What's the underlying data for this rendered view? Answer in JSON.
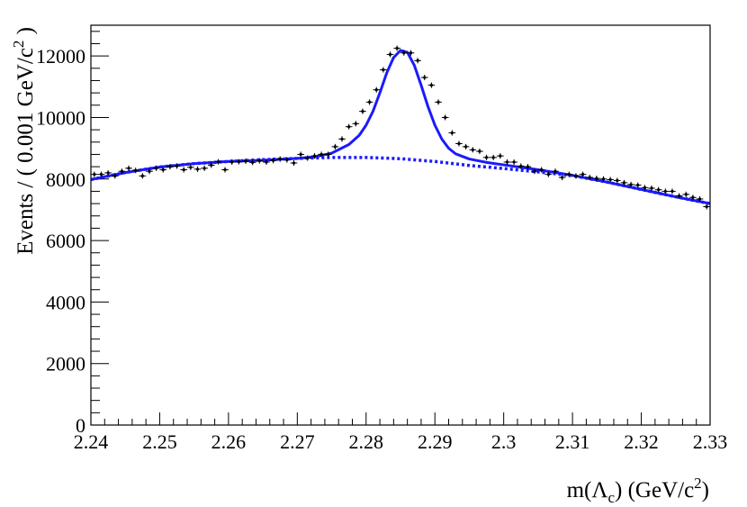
{
  "chart_data": {
    "type": "scatter",
    "xlabel": "m(Λc) (GeV/c²)",
    "xlabel_parts": {
      "prefix": "m(Λ",
      "sub": "c",
      "mid": ") (GeV/c",
      "sup": "2",
      "suffix": ")"
    },
    "ylabel": "Events / ( 0.001 GeV/c² )",
    "ylabel_parts": {
      "prefix": "Events / ( 0.001 GeV/c",
      "sup": "2",
      "suffix": " )"
    },
    "xlim": [
      2.24,
      2.33
    ],
    "ylim": [
      0,
      13000
    ],
    "x_ticks": [
      "2.24",
      "2.25",
      "2.26",
      "2.27",
      "2.28",
      "2.29",
      "2.3",
      "2.31",
      "2.32",
      "2.33"
    ],
    "x_tick_values": [
      2.24,
      2.25,
      2.26,
      2.27,
      2.28,
      2.29,
      2.3,
      2.31,
      2.32,
      2.33
    ],
    "y_ticks": [
      "0",
      "2000",
      "4000",
      "6000",
      "8000",
      "10000",
      "12000"
    ],
    "y_tick_values": [
      0,
      2000,
      4000,
      6000,
      8000,
      10000,
      12000
    ],
    "grid": false,
    "colors": {
      "fit": "#1a1aff",
      "points": "#000000"
    },
    "series": [
      {
        "kind": "points",
        "x": [
          2.2405,
          2.2415,
          2.2425,
          2.2435,
          2.2445,
          2.2455,
          2.2465,
          2.2475,
          2.2485,
          2.2495,
          2.2505,
          2.2515,
          2.2525,
          2.2535,
          2.2545,
          2.2555,
          2.2565,
          2.2575,
          2.2585,
          2.2595,
          2.2605,
          2.2615,
          2.2625,
          2.2635,
          2.2645,
          2.2655,
          2.2665,
          2.2675,
          2.2685,
          2.2695,
          2.2705,
          2.2715,
          2.2725,
          2.2735,
          2.2745,
          2.2755,
          2.2765,
          2.2775,
          2.2785,
          2.2795,
          2.2805,
          2.2815,
          2.2825,
          2.2835,
          2.2845,
          2.2855,
          2.2865,
          2.2875,
          2.2885,
          2.2895,
          2.2905,
          2.2915,
          2.2925,
          2.2935,
          2.2945,
          2.2955,
          2.2965,
          2.2975,
          2.2985,
          2.2995,
          2.3005,
          2.3015,
          2.3025,
          2.3035,
          2.3045,
          2.3055,
          2.3065,
          2.3075,
          2.3085,
          2.3095,
          2.3105,
          2.3115,
          2.3125,
          2.3135,
          2.3145,
          2.3155,
          2.3165,
          2.3175,
          2.3185,
          2.3195,
          2.3205,
          2.3215,
          2.3225,
          2.3235,
          2.3245,
          2.3255,
          2.3265,
          2.3275,
          2.3285,
          2.3295
        ],
        "y": [
          8150,
          8150,
          8200,
          8100,
          8250,
          8350,
          8280,
          8100,
          8250,
          8350,
          8300,
          8400,
          8420,
          8300,
          8380,
          8320,
          8350,
          8450,
          8560,
          8300,
          8550,
          8560,
          8580,
          8540,
          8590,
          8550,
          8600,
          8650,
          8620,
          8520,
          8800,
          8680,
          8750,
          8800,
          8800,
          9050,
          9300,
          9700,
          9800,
          10200,
          10500,
          10900,
          11550,
          12050,
          12250,
          12100,
          12100,
          11850,
          11300,
          11050,
          10500,
          10000,
          9500,
          9150,
          9050,
          8950,
          8900,
          8700,
          8700,
          8750,
          8550,
          8550,
          8420,
          8400,
          8250,
          8300,
          8150,
          8250,
          8050,
          8150,
          8100,
          8150,
          8050,
          8020,
          8000,
          7980,
          7950,
          7880,
          7820,
          7800,
          7720,
          7700,
          7650,
          7600,
          7600,
          7450,
          7500,
          7400,
          7350,
          7100
        ],
        "yerr": 90
      },
      {
        "kind": "fit-total",
        "style": "solid",
        "x": [
          2.24,
          2.245,
          2.25,
          2.255,
          2.26,
          2.265,
          2.27,
          2.2725,
          2.275,
          2.2775,
          2.279,
          2.28,
          2.281,
          2.282,
          2.283,
          2.284,
          2.285,
          2.286,
          2.287,
          2.288,
          2.289,
          2.29,
          2.291,
          2.292,
          2.293,
          2.295,
          2.2975,
          2.3,
          2.305,
          2.31,
          2.315,
          2.32,
          2.325,
          2.33
        ],
        "y": [
          7980,
          8210,
          8390,
          8500,
          8570,
          8610,
          8670,
          8720,
          8840,
          9120,
          9420,
          9750,
          10200,
          10800,
          11450,
          11950,
          12180,
          12120,
          11700,
          11050,
          10350,
          9750,
          9300,
          9000,
          8820,
          8650,
          8540,
          8460,
          8300,
          8120,
          7900,
          7660,
          7420,
          7200
        ]
      },
      {
        "kind": "fit-background",
        "style": "dotted",
        "x": [
          2.24,
          2.245,
          2.25,
          2.255,
          2.26,
          2.265,
          2.27,
          2.275,
          2.28,
          2.285,
          2.29,
          2.295,
          2.3,
          2.305,
          2.31,
          2.315,
          2.32,
          2.325,
          2.33
        ],
        "y": [
          7980,
          8210,
          8390,
          8500,
          8570,
          8630,
          8670,
          8700,
          8700,
          8660,
          8570,
          8440,
          8340,
          8230,
          8110,
          7900,
          7660,
          7420,
          7200
        ]
      }
    ]
  }
}
